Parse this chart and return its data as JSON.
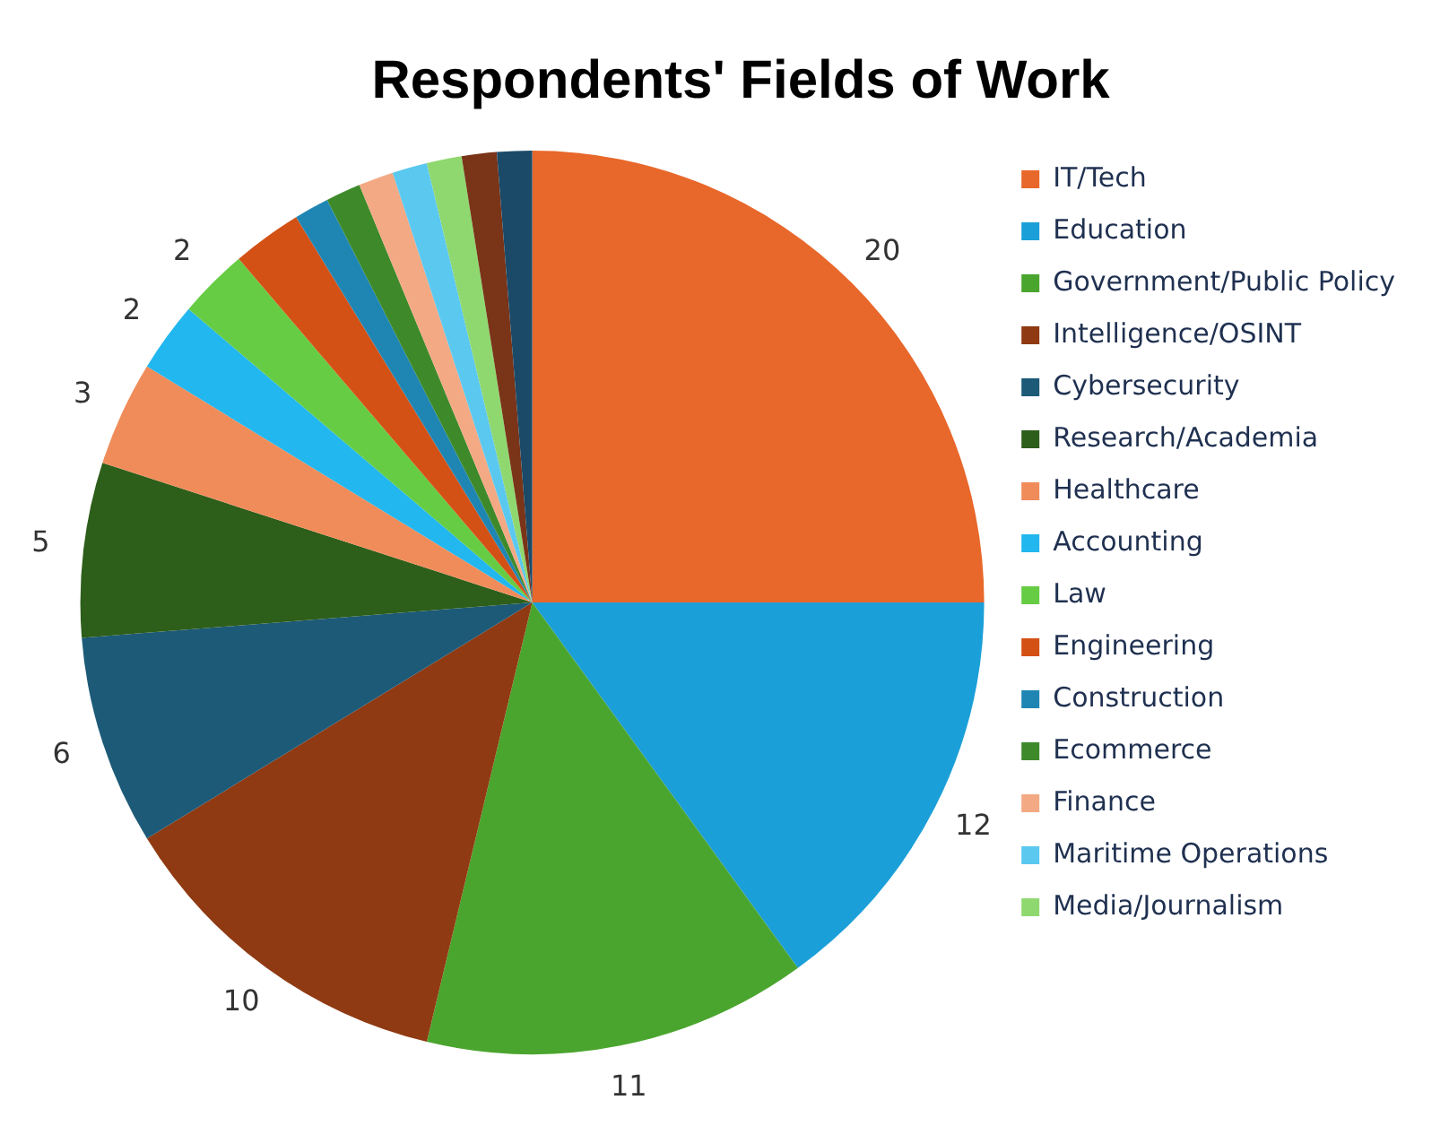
{
  "chart_data": {
    "type": "pie",
    "title": "Respondents' Fields of Work",
    "categories": [
      "IT/Tech",
      "Education",
      "Government/Public Policy",
      "Intelligence/OSINT",
      "Cybersecurity",
      "Research/Academia",
      "Healthcare",
      "Accounting",
      "Law",
      "Engineering",
      "Construction",
      "Ecommerce",
      "Finance",
      "Maritime Operations",
      "Media/Journalism",
      null,
      null
    ],
    "values": [
      20,
      12,
      11,
      10,
      6,
      5,
      3,
      2,
      2,
      2,
      1,
      1,
      1,
      1,
      1,
      1,
      1
    ],
    "value_labels": [
      "20",
      "12",
      "11",
      "10",
      "6",
      "5",
      "3",
      "2",
      "2",
      null,
      null,
      null,
      null,
      null,
      null,
      null,
      null
    ],
    "colors": [
      "#e8672a",
      "#1b9fd8",
      "#4aa52e",
      "#8f3a12",
      "#1d5a78",
      "#2d5e1a",
      "#f08c5a",
      "#22b7ee",
      "#66cc44",
      "#d45116",
      "#1f86b4",
      "#3e8a2b",
      "#f3a984",
      "#5bc8f0",
      "#8fd870",
      "#7a3418",
      "#1a4a68"
    ],
    "legend": "right"
  }
}
